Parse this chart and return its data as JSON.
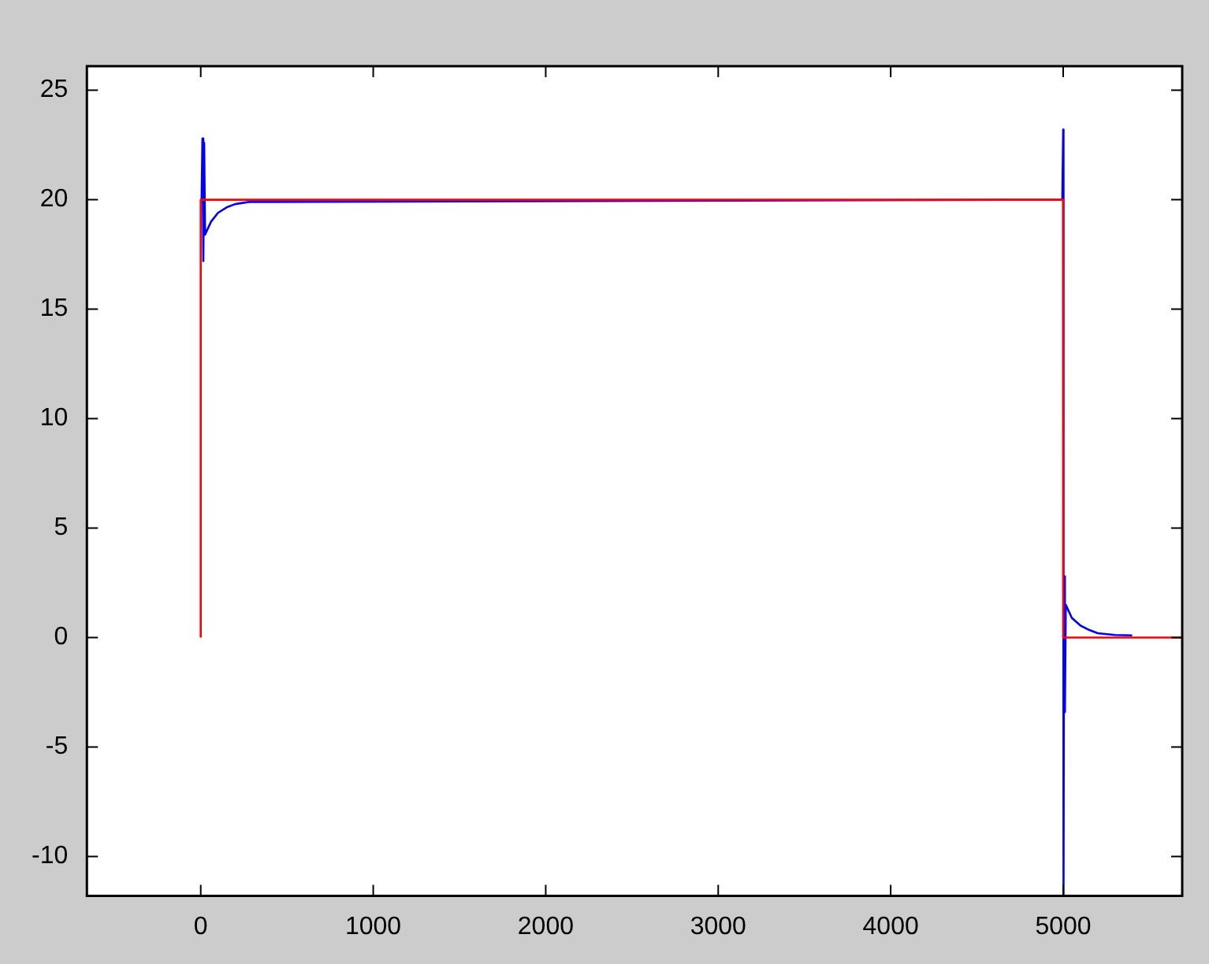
{
  "chart_data": {
    "type": "line",
    "xlim": [
      -660,
      5690
    ],
    "ylim": [
      -11.8,
      26.1
    ],
    "xticks": [
      0,
      1000,
      2000,
      3000,
      4000,
      5000
    ],
    "yticks": [
      -10,
      -5,
      0,
      5,
      10,
      15,
      20,
      25
    ],
    "grid": false,
    "legend": false,
    "marker": "none",
    "line_style": "solid",
    "series": [
      {
        "color": "#0000ff",
        "x": [
          5,
          10,
          15,
          20,
          25,
          60,
          100,
          150,
          200,
          280,
          380,
          4995,
          5000,
          5002,
          5005,
          5010,
          5015,
          5050,
          5100,
          5150,
          5200,
          5300,
          5400
        ],
        "values": [
          20,
          22.8,
          17.2,
          22.6,
          18.4,
          19.0,
          19.4,
          19.65,
          19.8,
          19.9,
          19.9,
          20,
          23.2,
          -11.8,
          2.8,
          -3.4,
          1.5,
          0.9,
          0.55,
          0.35,
          0.2,
          0.12,
          0.1
        ]
      },
      {
        "color": "#ff0000",
        "x": [
          0,
          0,
          5000,
          5000,
          5690
        ],
        "values": [
          0,
          20,
          20,
          0,
          0
        ]
      }
    ]
  }
}
